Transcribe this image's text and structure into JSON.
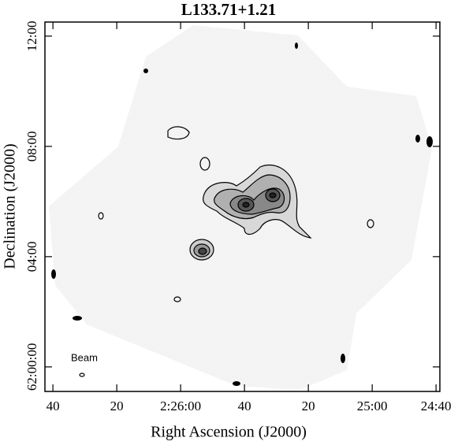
{
  "chart_data": {
    "type": "contour-map",
    "title": "L133.71+1.21",
    "xlabel": "Right Ascension (J2000)",
    "ylabel": "Declination (J2000)",
    "annotation": "Beam",
    "xlim": [
      1602.5,
      1478.8
    ],
    "xticks": [
      {
        "value": 1600,
        "label": "40"
      },
      {
        "value": 1580,
        "label": "20"
      },
      {
        "value": 1560,
        "label": "2:26:00"
      },
      {
        "value": 1540,
        "label": "40"
      },
      {
        "value": 1520,
        "label": "20"
      },
      {
        "value": 1500,
        "label": "25:00"
      },
      {
        "value": 1480,
        "label": "24:40"
      }
    ],
    "ylim": [
      -0.89,
      12.51
    ],
    "yticks": [
      {
        "value": 0,
        "label": "62:00:00"
      },
      {
        "value": 4,
        "label": "04:00"
      },
      {
        "value": 8,
        "label": "08:00"
      },
      {
        "value": 12,
        "label": "12:00"
      }
    ]
  }
}
